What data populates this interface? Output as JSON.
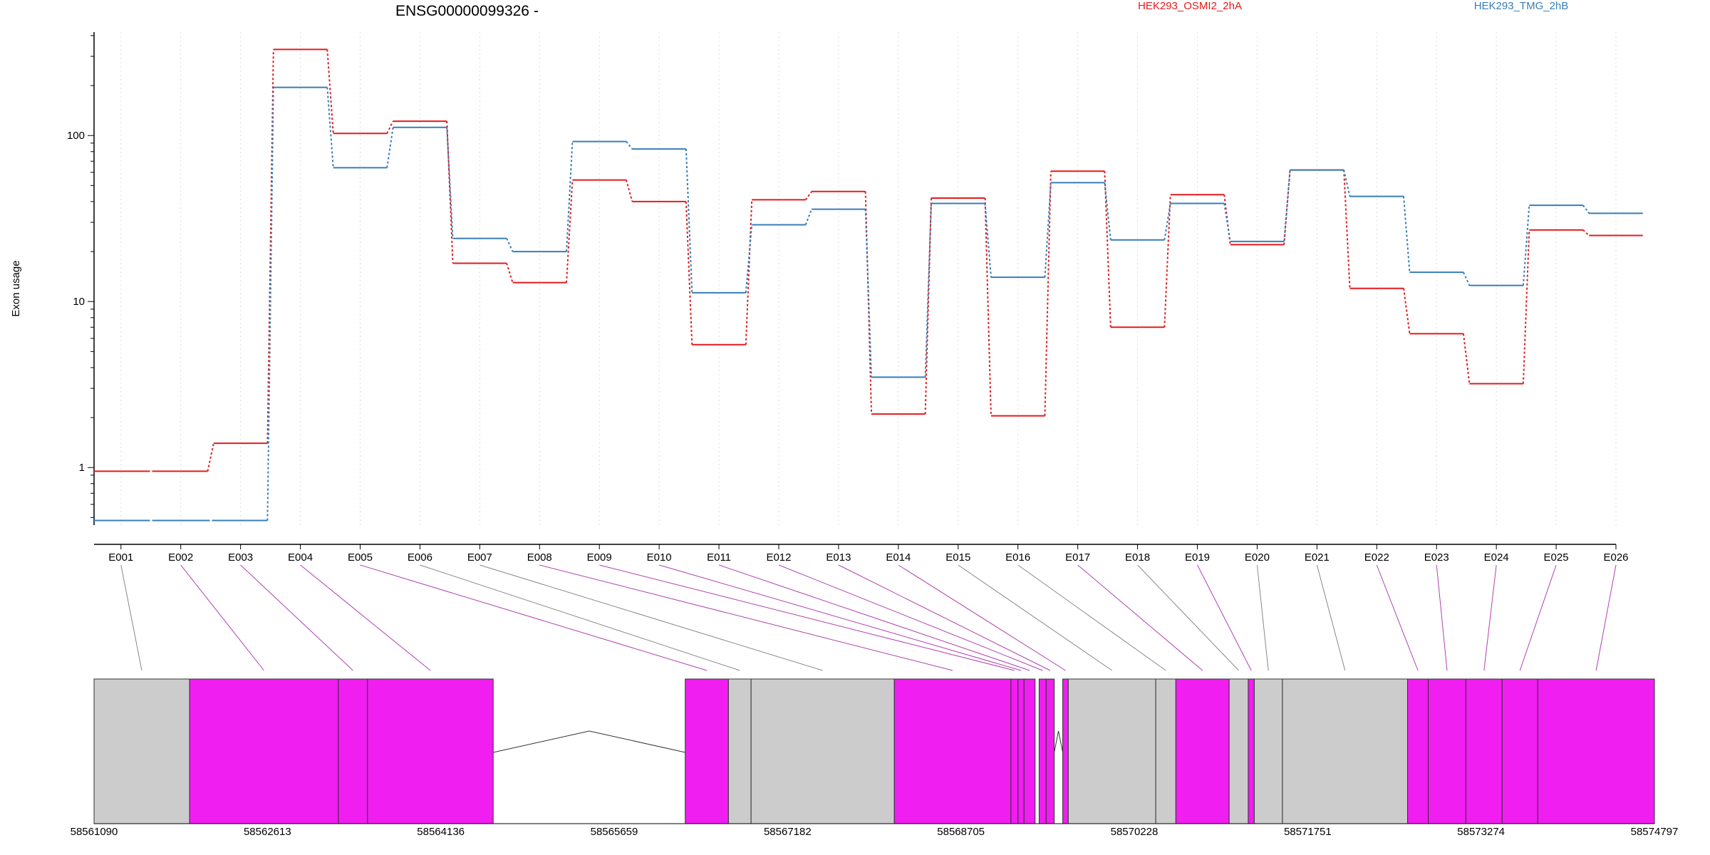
{
  "chart_data": {
    "type": "line",
    "title": "ENSG00000099326 -",
    "ylabel": "Exon usage",
    "xlabel": "",
    "y_scale": "log",
    "ylim": [
      0.45,
      420
    ],
    "y_ticks": [
      1,
      10,
      100
    ],
    "y_tick_labels": [
      "1",
      "10",
      "100"
    ],
    "categories": [
      "E001",
      "E002",
      "E003",
      "E004",
      "E005",
      "E006",
      "E007",
      "E008",
      "E009",
      "E010",
      "E011",
      "E012",
      "E013",
      "E014",
      "E015",
      "E016",
      "E017",
      "E018",
      "E019",
      "E020",
      "E021",
      "E022",
      "E023",
      "E024",
      "E025",
      "E026"
    ],
    "legend_position": "top",
    "grid": "vertical dotted",
    "series": [
      {
        "name": "HEK293_OSMI2_2hA",
        "color": "#e41a1c",
        "values": [
          0.95,
          0.95,
          1.4,
          330,
          103,
          122,
          17,
          13,
          54,
          40,
          5.5,
          41,
          46,
          2.1,
          42,
          2.05,
          61,
          7,
          44,
          22,
          62,
          12,
          6.4,
          3.2,
          27,
          25
        ]
      },
      {
        "name": "HEK293_TMG_2hB",
        "color": "#377eb8",
        "values": [
          0.48,
          0.48,
          0.48,
          195,
          64,
          112,
          24,
          20,
          92,
          83,
          11.3,
          29,
          36,
          3.5,
          39,
          14,
          52,
          23.5,
          39,
          23,
          62,
          43,
          15,
          12.5,
          38,
          34
        ]
      }
    ],
    "gene_model": {
      "genomic_range": [
        58561090,
        58574797
      ],
      "axis_ticks": [
        58561090,
        58562613,
        58564136,
        58565659,
        58567182,
        58568705,
        58570228,
        58571751,
        58573274,
        58574797
      ],
      "exon_colors": {
        "tested": "#f01ef0",
        "untested": "#cccccc"
      },
      "exon_highlight": [
        false,
        true,
        true,
        true,
        true,
        false,
        false,
        true,
        true,
        true,
        true,
        true,
        true,
        true,
        false,
        false,
        true,
        false,
        true,
        false,
        false,
        true,
        true,
        true,
        true,
        true
      ]
    }
  }
}
